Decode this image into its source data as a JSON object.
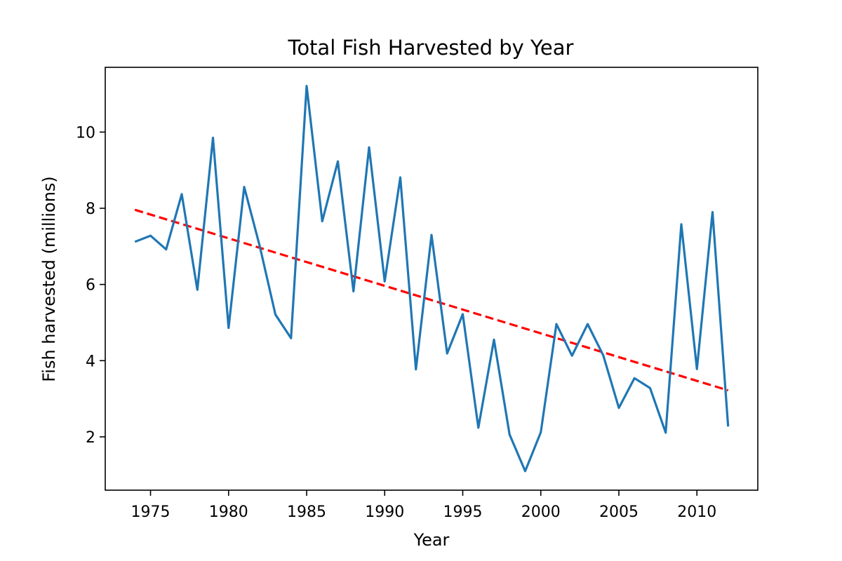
{
  "chart_data": {
    "type": "line",
    "title": "Total Fish Harvested by Year",
    "xlabel": "Year",
    "ylabel": "Fish harvested (millions)",
    "xlim": [
      1972.1,
      2013.9
    ],
    "ylim": [
      0.6,
      11.7
    ],
    "x_ticks": [
      1975,
      1980,
      1985,
      1990,
      1995,
      2000,
      2005,
      2010
    ],
    "y_ticks": [
      2,
      4,
      6,
      8,
      10
    ],
    "grid": false,
    "series": [
      {
        "color": "#1f77b4",
        "x": [
          1974,
          1975,
          1976,
          1977,
          1978,
          1979,
          1980,
          1981,
          1982,
          1983,
          1984,
          1985,
          1986,
          1987,
          1988,
          1989,
          1990,
          1991,
          1992,
          1993,
          1994,
          1995,
          1996,
          1997,
          1998,
          1999,
          2000,
          2001,
          2002,
          2003,
          2004,
          2005,
          2006,
          2007,
          2008,
          2009,
          2010,
          2011,
          2012
        ],
        "y": [
          7.12,
          7.28,
          6.92,
          8.37,
          5.86,
          9.85,
          4.86,
          8.56,
          7.0,
          5.21,
          4.59,
          11.21,
          7.66,
          9.23,
          5.82,
          9.6,
          6.08,
          8.81,
          3.77,
          7.3,
          4.19,
          5.22,
          2.24,
          4.55,
          2.06,
          1.1,
          2.12,
          4.96,
          4.13,
          4.96,
          4.14,
          2.76,
          3.54,
          3.28,
          2.11,
          7.58,
          3.78,
          7.9,
          2.27
        ]
      }
    ],
    "trend": {
      "color": "#ff0000",
      "style": "dashed",
      "x": [
        1974,
        2012
      ],
      "y": [
        7.96,
        3.22
      ]
    }
  }
}
